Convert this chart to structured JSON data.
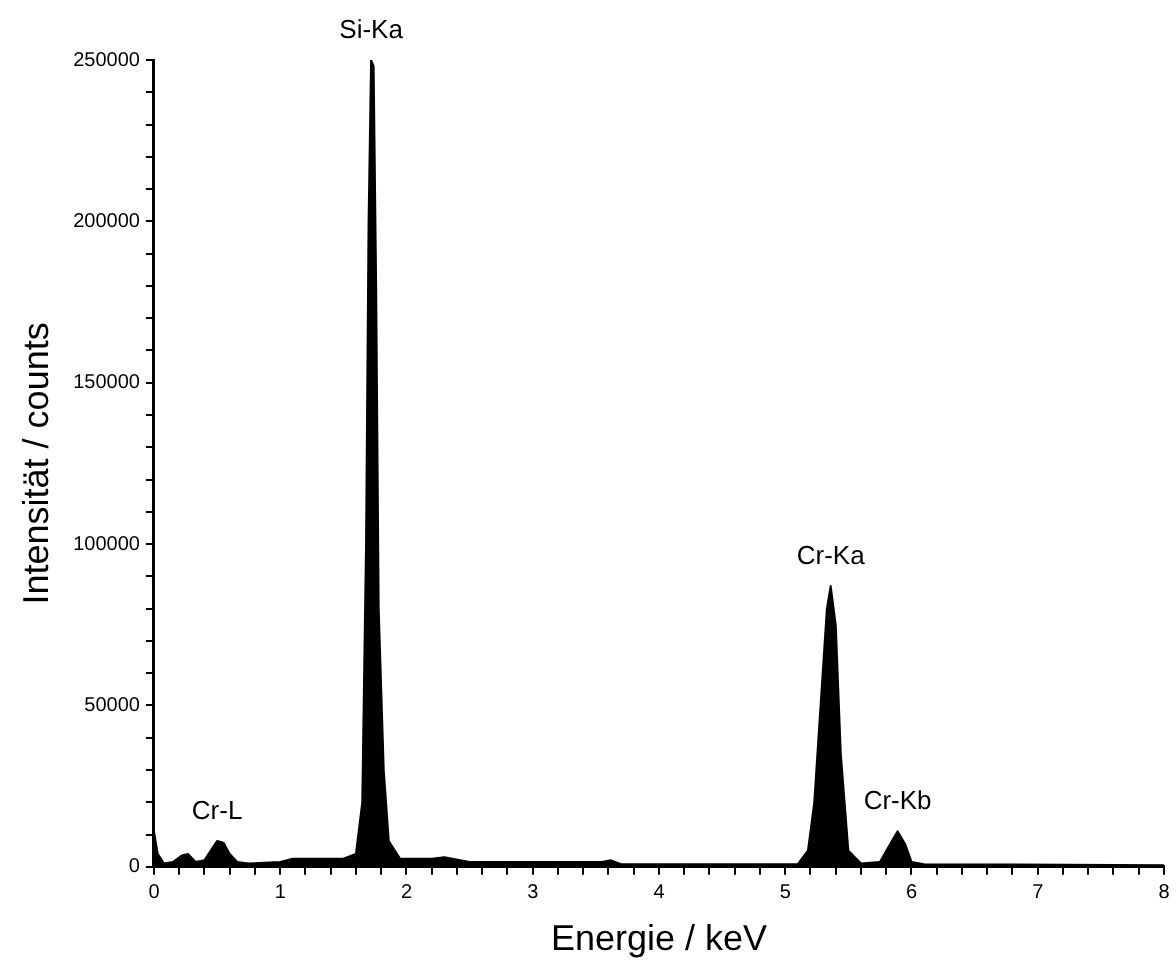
{
  "chart_data": {
    "type": "area",
    "xlabel": "Energie / keV",
    "ylabel": "Intensität / counts",
    "xlim": [
      0,
      8
    ],
    "xticks": [
      0,
      {
        "value": 0.2,
        "label": null
      },
      {
        "value": 0.4,
        "label": null
      },
      {
        "value": 0.6,
        "label": null
      },
      {
        "value": 0.8,
        "label": null
      },
      1,
      {
        "value": 1.2,
        "label": null
      },
      {
        "value": 1.4,
        "label": null
      },
      {
        "value": 1.6,
        "label": null
      },
      {
        "value": 1.8,
        "label": null
      },
      2,
      {
        "value": 2.2,
        "label": null
      },
      {
        "value": 2.4,
        "label": null
      },
      {
        "value": 2.6,
        "label": null
      },
      {
        "value": 2.8,
        "label": null
      },
      3,
      {
        "value": 3.2,
        "label": null
      },
      {
        "value": 3.4,
        "label": null
      },
      {
        "value": 3.6,
        "label": null
      },
      {
        "value": 3.8,
        "label": null
      },
      4,
      {
        "value": 4.2,
        "label": null
      },
      {
        "value": 4.4,
        "label": null
      },
      {
        "value": 4.6,
        "label": null
      },
      {
        "value": 4.8,
        "label": null
      },
      5,
      {
        "value": 5.2,
        "label": null
      },
      {
        "value": 5.4,
        "label": null
      },
      {
        "value": 5.6,
        "label": null
      },
      {
        "value": 5.8,
        "label": null
      },
      6,
      {
        "value": 6.2,
        "label": null
      },
      {
        "value": 6.4,
        "label": null
      },
      {
        "value": 6.6,
        "label": null
      },
      {
        "value": 6.8,
        "label": null
      },
      7,
      {
        "value": 7.2,
        "label": null
      },
      {
        "value": 7.4,
        "label": null
      },
      {
        "value": 7.6,
        "label": null
      },
      {
        "value": 7.8,
        "label": null
      },
      8
    ],
    "ylim": [
      0,
      250000
    ],
    "yticks": [
      0,
      {
        "value": 10000,
        "label": null
      },
      {
        "value": 20000,
        "label": null
      },
      {
        "value": 30000,
        "label": null
      },
      {
        "value": 40000,
        "label": null
      },
      50000,
      {
        "value": 60000,
        "label": null
      },
      {
        "value": 70000,
        "label": null
      },
      {
        "value": 80000,
        "label": null
      },
      {
        "value": 90000,
        "label": null
      },
      100000,
      {
        "value": 110000,
        "label": null
      },
      {
        "value": 120000,
        "label": null
      },
      {
        "value": 130000,
        "label": null
      },
      {
        "value": 140000,
        "label": null
      },
      150000,
      {
        "value": 160000,
        "label": null
      },
      {
        "value": 170000,
        "label": null
      },
      {
        "value": 180000,
        "label": null
      },
      {
        "value": 190000,
        "label": null
      },
      200000,
      {
        "value": 210000,
        "label": null
      },
      {
        "value": 220000,
        "label": null
      },
      {
        "value": 230000,
        "label": null
      },
      {
        "value": 240000,
        "label": null
      },
      250000
    ],
    "grid": false,
    "legend": false,
    "marker": "none",
    "x": [
      0,
      0.03,
      0.08,
      0.15,
      0.22,
      0.27,
      0.33,
      0.4,
      0.45,
      0.5,
      0.55,
      0.6,
      0.66,
      0.75,
      1.0,
      1.1,
      1.5,
      1.6,
      1.65,
      1.68,
      1.7,
      1.72,
      1.74,
      1.76,
      1.78,
      1.82,
      1.86,
      1.95,
      2.2,
      2.3,
      2.5,
      3.55,
      3.62,
      3.7,
      5.1,
      5.18,
      5.23,
      5.28,
      5.33,
      5.36,
      5.4,
      5.44,
      5.5,
      5.6,
      5.75,
      5.83,
      5.89,
      5.95,
      6.0,
      6.1,
      8
    ],
    "series": [
      {
        "color": "#000000",
        "values": [
          11000,
          4000,
          1000,
          1500,
          3500,
          4000,
          1500,
          2000,
          5000,
          8000,
          7500,
          4000,
          1500,
          1000,
          1500,
          2500,
          2500,
          4000,
          20000,
          100000,
          200000,
          250000,
          248000,
          180000,
          80000,
          30000,
          8000,
          2500,
          2500,
          3000,
          1500,
          1500,
          2000,
          800,
          800,
          5000,
          20000,
          50000,
          80000,
          87000,
          75000,
          35000,
          5000,
          1000,
          1500,
          7000,
          11000,
          7000,
          1500,
          800,
          500
        ]
      }
    ],
    "annotations": [
      {
        "text": "Cr-L",
        "x": 0.5,
        "y": 8000
      },
      {
        "text": "Si-Ka",
        "x": 1.72,
        "y": 250000
      },
      {
        "text": "Cr-Ka",
        "x": 5.36,
        "y": 87000
      },
      {
        "text": "Cr-Kb",
        "x": 5.89,
        "y": 11000
      }
    ]
  }
}
